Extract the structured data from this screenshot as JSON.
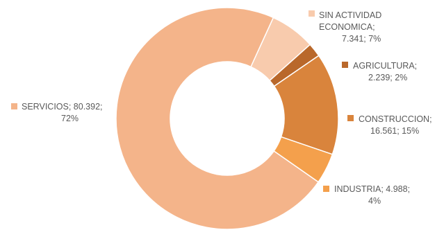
{
  "chart_data": {
    "type": "pie",
    "variant": "donut",
    "title": "",
    "start_category": "SIN ACTIVIDAD ECONOMICA",
    "direction": "clockwise",
    "slices": [
      {
        "name": "SIN ACTIVIDAD ECONOMICA",
        "value": 7341,
        "value_label": "7.341",
        "percent_label": "7%",
        "color": "#F8CBAD",
        "label_lines": [
          "SIN ACTIVIDAD",
          "ECONOMICA;",
          "7.341; 7%"
        ]
      },
      {
        "name": "AGRICULTURA",
        "value": 2239,
        "value_label": "2.239",
        "percent_label": "2%",
        "color": "#B9682B",
        "label_lines": [
          "AGRICULTURA;",
          "2.239; 2%"
        ]
      },
      {
        "name": "CONSTRUCCION",
        "value": 16561,
        "value_label": "16.561",
        "percent_label": "15%",
        "color": "#D9843C",
        "label_lines": [
          "CONSTRUCCION;",
          "16.561; 15%"
        ]
      },
      {
        "name": "INDUSTRIA",
        "value": 4988,
        "value_label": "4.988",
        "percent_label": "4%",
        "color": "#F4A04C",
        "label_lines": [
          "INDUSTRIA; 4.988;",
          "4%"
        ]
      },
      {
        "name": "SERVICIOS",
        "value": 80392,
        "value_label": "80.392",
        "percent_label": "72%",
        "color": "#F4B48A",
        "label_lines": [
          "SERVICIOS; 80.392;",
          "72%"
        ]
      }
    ],
    "legend": "none",
    "data_labels": "category; value; percent"
  }
}
